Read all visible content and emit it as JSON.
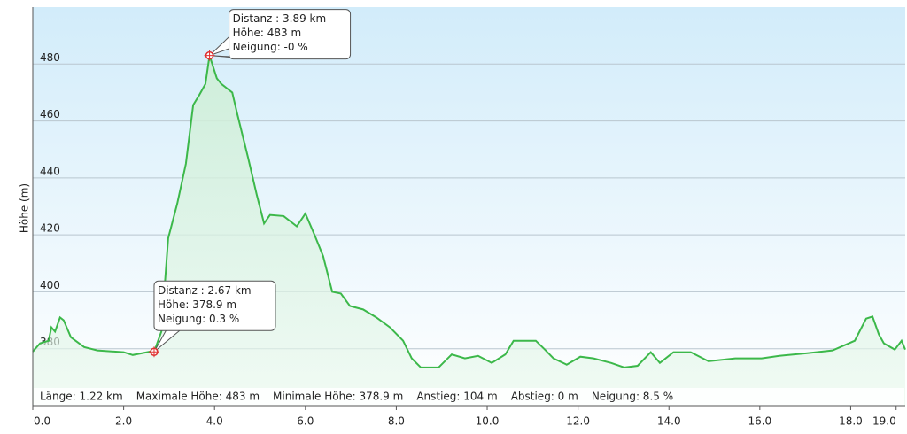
{
  "chart_data": {
    "type": "area",
    "y_label": "Höhe (m)",
    "x": [
      0,
      0.16,
      0.35,
      0.41,
      0.49,
      0.6,
      0.68,
      0.84,
      1.13,
      1.42,
      2.0,
      2.2,
      2.59,
      2.67,
      2.83,
      2.98,
      3.18,
      3.37,
      3.53,
      3.66,
      3.8,
      3.89,
      4.05,
      4.15,
      4.39,
      4.5,
      4.74,
      4.93,
      5.09,
      5.22,
      5.52,
      5.81,
      6.0,
      6.2,
      6.39,
      6.59,
      6.78,
      6.98,
      7.27,
      7.56,
      7.86,
      8.15,
      8.34,
      8.54,
      8.93,
      9.22,
      9.51,
      9.8,
      10.1,
      10.4,
      10.58,
      10.87,
      11.07,
      11.27,
      11.46,
      11.75,
      12.05,
      12.34,
      12.73,
      13.02,
      13.31,
      13.6,
      13.8,
      14.1,
      14.48,
      14.87,
      15.46,
      16.04,
      16.43,
      17.02,
      17.6,
      18.09,
      18.34,
      18.48,
      18.62,
      18.73,
      18.97,
      19.12,
      19.2
    ],
    "series": [
      {
        "color": "#3cb84a",
        "values": [
          379,
          381.9,
          382.8,
          387.5,
          386,
          391,
          390,
          384,
          380.6,
          379.4,
          378.8,
          377.8,
          379,
          378.9,
          386,
          418.8,
          431,
          445,
          465.6,
          469,
          473,
          483,
          475,
          473,
          470,
          462.5,
          447,
          434,
          424,
          427,
          426.6,
          423,
          427.5,
          420,
          412.5,
          400,
          399.4,
          395,
          393.8,
          391,
          387.5,
          382.8,
          376.6,
          373.4,
          373.4,
          378,
          376.6,
          377.5,
          375,
          378,
          382.8,
          382.8,
          382.8,
          379.7,
          376.6,
          374.4,
          377.2,
          376.6,
          375,
          373.4,
          374,
          378.8,
          375,
          378.8,
          378.8,
          375.6,
          376.6,
          376.6,
          377.5,
          378.4,
          379.4,
          382.8,
          390.6,
          391.3,
          385,
          381.9,
          379.7,
          382.8,
          379.7
        ]
      }
    ],
    "xlim": [
      0,
      19.2
    ],
    "ylim": [
      360,
      500
    ],
    "xticks": [
      {
        "value": 0,
        "label": "0.0"
      },
      {
        "value": 2,
        "label": "2.0"
      },
      {
        "value": 4,
        "label": "4.0"
      },
      {
        "value": 6,
        "label": "6.0"
      },
      {
        "value": 8,
        "label": "8.0"
      },
      {
        "value": 10,
        "label": "10.0"
      },
      {
        "value": 12,
        "label": "12.0"
      },
      {
        "value": 14,
        "label": "14.0"
      },
      {
        "value": 16,
        "label": "16.0"
      },
      {
        "value": 18,
        "label": "18.0"
      },
      {
        "value": 19,
        "label": "19.0"
      }
    ],
    "yticks": [
      380,
      400,
      420,
      440,
      460,
      480
    ],
    "grid": true,
    "markers": [
      {
        "x": 2.67,
        "y": 378.9,
        "lines": [
          "Distanz : 2.67 km",
          "Höhe: 378.9 m",
          "Neigung: 0.3 %"
        ]
      },
      {
        "x": 3.89,
        "y": 483,
        "lines": [
          "Distanz : 3.89 km",
          "Höhe: 483 m",
          "Neigung: -0 %"
        ]
      }
    ],
    "stats": [
      "Länge: 1.22 km",
      "Maximale Höhe: 483 m",
      "Minimale Höhe: 378.9 m",
      "Anstieg: 104 m",
      "Abstieg: 0 m",
      "Neigung: 8.5 %"
    ]
  }
}
